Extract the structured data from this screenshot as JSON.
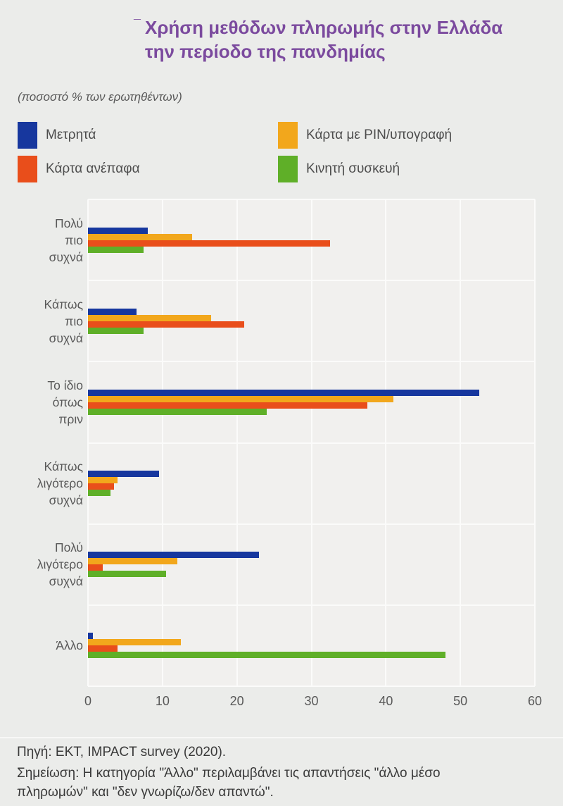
{
  "header": {
    "title_mark": "¯",
    "title_lines": [
      "Χρήση μεθόδων πληρωμής στην Ελλάδα",
      "την περίοδο της πανδημίας"
    ],
    "subtitle": "(ποσοστό % των ερωτηθέντων)"
  },
  "chart_data": {
    "type": "bar",
    "orientation": "horizontal",
    "title": "Χρήση μεθόδων πληρωμής στην Ελλάδα την περίοδο της πανδημίας",
    "subtitle": "(ποσοστό % των ερωτηθέντων)",
    "xlim": [
      0,
      60
    ],
    "xticks": [
      0,
      10,
      20,
      30,
      40,
      50,
      60
    ],
    "grid": true,
    "legend_position": "top",
    "categories": [
      "Πολύ πιο συχνά",
      "Κάπως πιο συχνά",
      "Το ίδιο όπως πριν",
      "Κάπως λιγότερο συχνά",
      "Πολύ λιγότερο συχνά",
      "Άλλο"
    ],
    "category_label_lines": [
      [
        "Πολύ",
        "πιο",
        "συχνά"
      ],
      [
        "Κάπως",
        "πιο",
        "συχνά"
      ],
      [
        "Το ίδιο",
        "όπως",
        "πριν"
      ],
      [
        "Κάπως",
        "λιγότερο",
        "συχνά"
      ],
      [
        "Πολύ",
        "λιγότερο",
        "συχνά"
      ],
      [
        "Άλλο"
      ]
    ],
    "series": [
      {
        "name": "Μετρητά",
        "color": "#17379e",
        "values": [
          8,
          6.5,
          52.5,
          9.5,
          23,
          0.7
        ]
      },
      {
        "name": "Κάρτα με PIN/υπογραφή",
        "color": "#f2a71c",
        "values": [
          14,
          16.5,
          41,
          4,
          12,
          12.5
        ]
      },
      {
        "name": "Κάρτα ανέπαφα",
        "color": "#e94e1b",
        "values": [
          32.5,
          21,
          37.5,
          3.5,
          2,
          4
        ]
      },
      {
        "name": "Κινητή συσκευή",
        "color": "#5faf28",
        "values": [
          7.5,
          7.5,
          24,
          3,
          10.5,
          48
        ]
      }
    ],
    "legend_columns": [
      [
        0,
        2
      ],
      [
        1,
        3
      ]
    ]
  },
  "footer": {
    "source": "Πηγή: ΕΚΤ, IMPACT survey (2020).",
    "note": "Σημείωση: Η κατηγορία \"Άλλο\" περιλαμβάνει τις απαντήσεις \"άλλο μέσο πληρωμών\" και \"δεν γνωρίζω/δεν απαντώ\"."
  },
  "colors": {
    "background": "#ebecea",
    "title": "#7b4a9e",
    "text_muted": "#595959",
    "text_dark": "#3a3a3a",
    "plot_background": "#f1f0ee",
    "gridline": "#fbfbfa"
  }
}
